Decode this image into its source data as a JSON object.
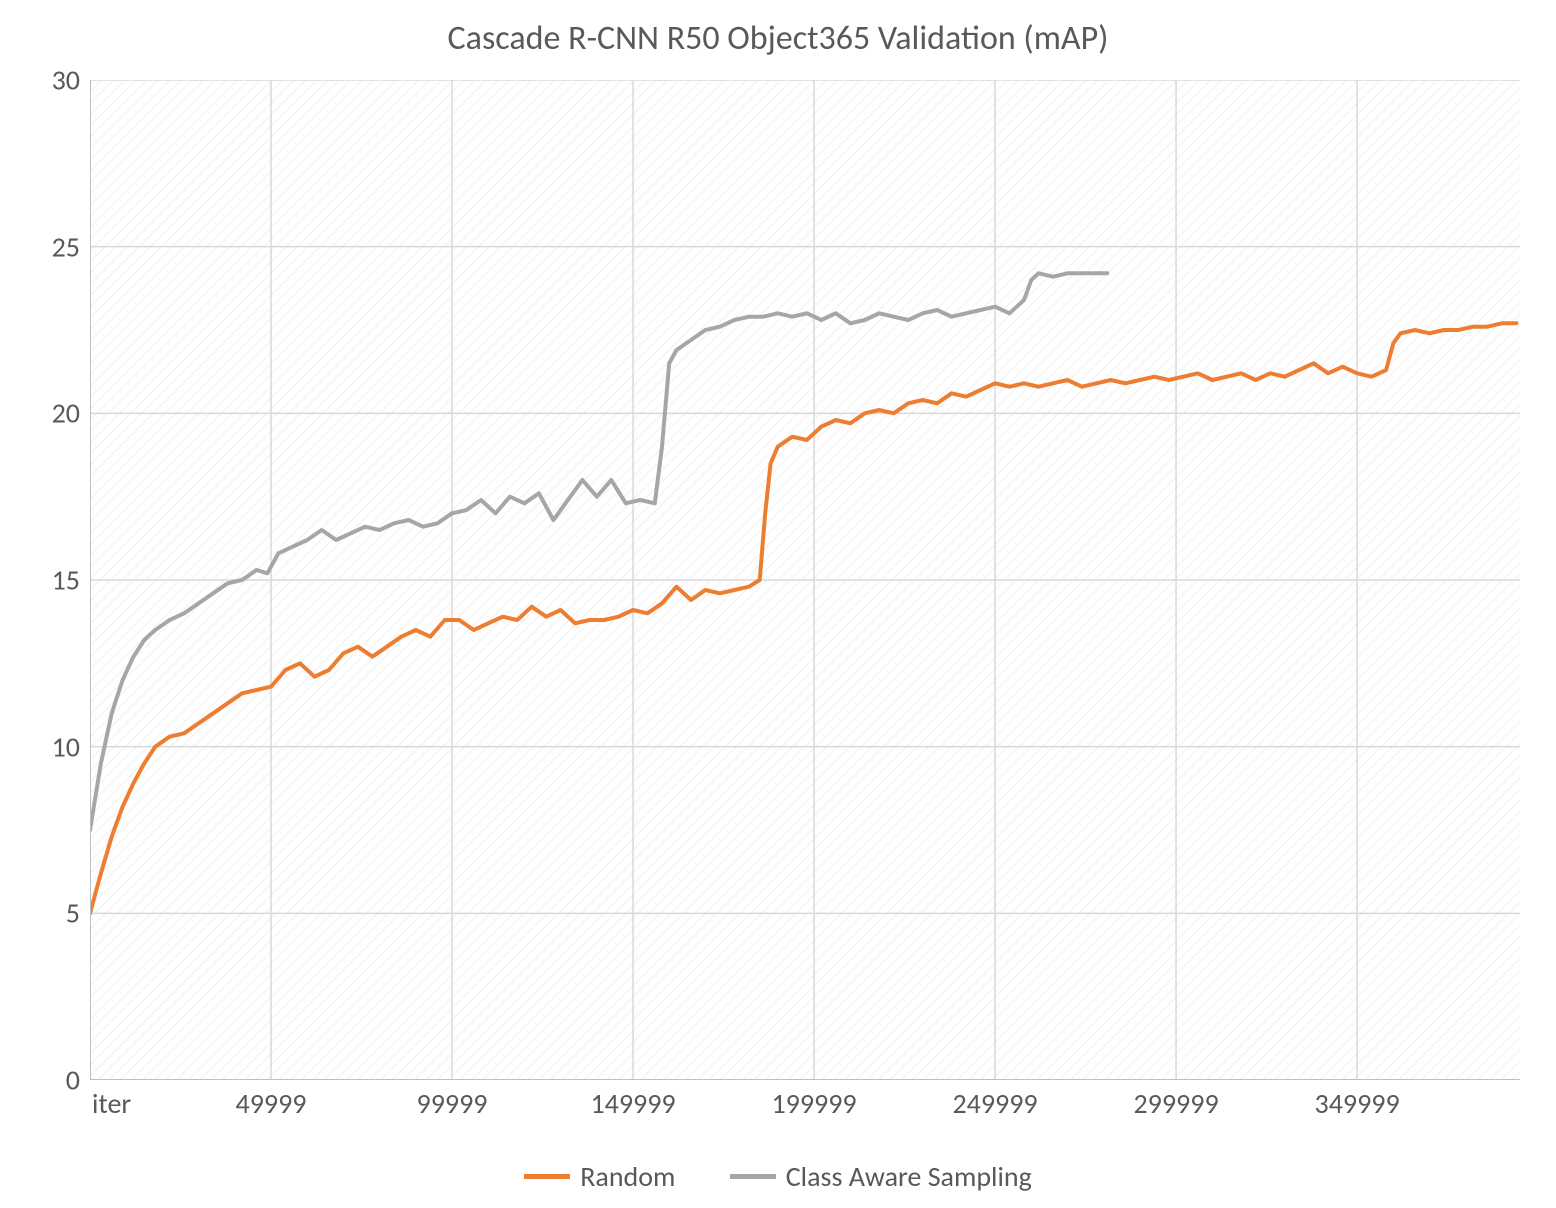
{
  "chart": {
    "type": "line",
    "title": "Cascade R-CNN R50 Object365 Validation (mAP)",
    "title_fontsize": 34,
    "title_color": "#595959",
    "plot_bg_hatch_color": "#e6e6e6",
    "plot_bg_base": "#ffffff",
    "gridline_color": "#d9d9d9",
    "axis_line_color": "#bfbfbf",
    "tick_label_color": "#595959",
    "tick_label_fontsize": 28,
    "legend_fontsize": 28,
    "xlim": [
      0,
      395000
    ],
    "ylim": [
      0,
      30
    ],
    "ytick_step": 5,
    "yticks": [
      0,
      5,
      10,
      15,
      20,
      25,
      30
    ],
    "xticks": [
      0,
      49999,
      99999,
      149999,
      199999,
      249999,
      299999,
      349999
    ],
    "xtick_labels": [
      "iter",
      "49999",
      "99999",
      "149999",
      "199999",
      "249999",
      "299999",
      "349999"
    ],
    "line_width": 4,
    "series": [
      {
        "name": "Random",
        "color": "#ed7d31",
        "data": [
          [
            0,
            5.0
          ],
          [
            3000,
            6.2
          ],
          [
            6000,
            7.3
          ],
          [
            9000,
            8.2
          ],
          [
            12000,
            8.9
          ],
          [
            15000,
            9.5
          ],
          [
            18000,
            10.0
          ],
          [
            22000,
            10.3
          ],
          [
            26000,
            10.4
          ],
          [
            30000,
            10.7
          ],
          [
            34000,
            11.0
          ],
          [
            38000,
            11.3
          ],
          [
            42000,
            11.6
          ],
          [
            46000,
            11.7
          ],
          [
            50000,
            11.8
          ],
          [
            54000,
            12.3
          ],
          [
            58000,
            12.5
          ],
          [
            62000,
            12.1
          ],
          [
            66000,
            12.3
          ],
          [
            70000,
            12.8
          ],
          [
            74000,
            13.0
          ],
          [
            78000,
            12.7
          ],
          [
            82000,
            13.0
          ],
          [
            86000,
            13.3
          ],
          [
            90000,
            13.5
          ],
          [
            94000,
            13.3
          ],
          [
            98000,
            13.8
          ],
          [
            102000,
            13.8
          ],
          [
            106000,
            13.5
          ],
          [
            110000,
            13.7
          ],
          [
            114000,
            13.9
          ],
          [
            118000,
            13.8
          ],
          [
            122000,
            14.2
          ],
          [
            126000,
            13.9
          ],
          [
            130000,
            14.1
          ],
          [
            134000,
            13.7
          ],
          [
            138000,
            13.8
          ],
          [
            142000,
            13.8
          ],
          [
            146000,
            13.9
          ],
          [
            150000,
            14.1
          ],
          [
            154000,
            14.0
          ],
          [
            158000,
            14.3
          ],
          [
            162000,
            14.8
          ],
          [
            166000,
            14.4
          ],
          [
            170000,
            14.7
          ],
          [
            174000,
            14.6
          ],
          [
            178000,
            14.7
          ],
          [
            182000,
            14.8
          ],
          [
            185000,
            15.0
          ],
          [
            186500,
            17.0
          ],
          [
            188000,
            18.5
          ],
          [
            190000,
            19.0
          ],
          [
            194000,
            19.3
          ],
          [
            198000,
            19.2
          ],
          [
            202000,
            19.6
          ],
          [
            206000,
            19.8
          ],
          [
            210000,
            19.7
          ],
          [
            214000,
            20.0
          ],
          [
            218000,
            20.1
          ],
          [
            222000,
            20.0
          ],
          [
            226000,
            20.3
          ],
          [
            230000,
            20.4
          ],
          [
            234000,
            20.3
          ],
          [
            238000,
            20.6
          ],
          [
            242000,
            20.5
          ],
          [
            246000,
            20.7
          ],
          [
            250000,
            20.9
          ],
          [
            254000,
            20.8
          ],
          [
            258000,
            20.9
          ],
          [
            262000,
            20.8
          ],
          [
            266000,
            20.9
          ],
          [
            270000,
            21.0
          ],
          [
            274000,
            20.8
          ],
          [
            278000,
            20.9
          ],
          [
            282000,
            21.0
          ],
          [
            286000,
            20.9
          ],
          [
            290000,
            21.0
          ],
          [
            294000,
            21.1
          ],
          [
            298000,
            21.0
          ],
          [
            302000,
            21.1
          ],
          [
            306000,
            21.2
          ],
          [
            310000,
            21.0
          ],
          [
            314000,
            21.1
          ],
          [
            318000,
            21.2
          ],
          [
            322000,
            21.0
          ],
          [
            326000,
            21.2
          ],
          [
            330000,
            21.1
          ],
          [
            334000,
            21.3
          ],
          [
            338000,
            21.5
          ],
          [
            342000,
            21.2
          ],
          [
            346000,
            21.4
          ],
          [
            350000,
            21.2
          ],
          [
            354000,
            21.1
          ],
          [
            358000,
            21.3
          ],
          [
            360000,
            22.1
          ],
          [
            362000,
            22.4
          ],
          [
            366000,
            22.5
          ],
          [
            370000,
            22.4
          ],
          [
            374000,
            22.5
          ],
          [
            378000,
            22.5
          ],
          [
            382000,
            22.6
          ],
          [
            386000,
            22.6
          ],
          [
            390000,
            22.7
          ],
          [
            394000,
            22.7
          ]
        ]
      },
      {
        "name": "Class Aware Sampling",
        "color": "#a6a6a6",
        "data": [
          [
            0,
            7.5
          ],
          [
            3000,
            9.5
          ],
          [
            6000,
            11.0
          ],
          [
            9000,
            12.0
          ],
          [
            12000,
            12.7
          ],
          [
            15000,
            13.2
          ],
          [
            18000,
            13.5
          ],
          [
            22000,
            13.8
          ],
          [
            26000,
            14.0
          ],
          [
            30000,
            14.3
          ],
          [
            34000,
            14.6
          ],
          [
            38000,
            14.9
          ],
          [
            42000,
            15.0
          ],
          [
            46000,
            15.3
          ],
          [
            49000,
            15.2
          ],
          [
            52000,
            15.8
          ],
          [
            56000,
            16.0
          ],
          [
            60000,
            16.2
          ],
          [
            64000,
            16.5
          ],
          [
            68000,
            16.2
          ],
          [
            72000,
            16.4
          ],
          [
            76000,
            16.6
          ],
          [
            80000,
            16.5
          ],
          [
            84000,
            16.7
          ],
          [
            88000,
            16.8
          ],
          [
            92000,
            16.6
          ],
          [
            96000,
            16.7
          ],
          [
            100000,
            17.0
          ],
          [
            104000,
            17.1
          ],
          [
            108000,
            17.4
          ],
          [
            112000,
            17.0
          ],
          [
            116000,
            17.5
          ],
          [
            120000,
            17.3
          ],
          [
            124000,
            17.6
          ],
          [
            128000,
            16.8
          ],
          [
            132000,
            17.4
          ],
          [
            136000,
            18.0
          ],
          [
            140000,
            17.5
          ],
          [
            144000,
            18.0
          ],
          [
            148000,
            17.3
          ],
          [
            152000,
            17.4
          ],
          [
            156000,
            17.3
          ],
          [
            158000,
            19.0
          ],
          [
            160000,
            21.5
          ],
          [
            162000,
            21.9
          ],
          [
            166000,
            22.2
          ],
          [
            170000,
            22.5
          ],
          [
            174000,
            22.6
          ],
          [
            178000,
            22.8
          ],
          [
            182000,
            22.9
          ],
          [
            186000,
            22.9
          ],
          [
            190000,
            23.0
          ],
          [
            194000,
            22.9
          ],
          [
            198000,
            23.0
          ],
          [
            202000,
            22.8
          ],
          [
            206000,
            23.0
          ],
          [
            210000,
            22.7
          ],
          [
            214000,
            22.8
          ],
          [
            218000,
            23.0
          ],
          [
            222000,
            22.9
          ],
          [
            226000,
            22.8
          ],
          [
            230000,
            23.0
          ],
          [
            234000,
            23.1
          ],
          [
            238000,
            22.9
          ],
          [
            242000,
            23.0
          ],
          [
            246000,
            23.1
          ],
          [
            250000,
            23.2
          ],
          [
            254000,
            23.0
          ],
          [
            258000,
            23.4
          ],
          [
            260000,
            24.0
          ],
          [
            262000,
            24.2
          ],
          [
            266000,
            24.1
          ],
          [
            270000,
            24.2
          ],
          [
            274000,
            24.2
          ],
          [
            278000,
            24.2
          ],
          [
            281000,
            24.2
          ]
        ]
      }
    ]
  }
}
